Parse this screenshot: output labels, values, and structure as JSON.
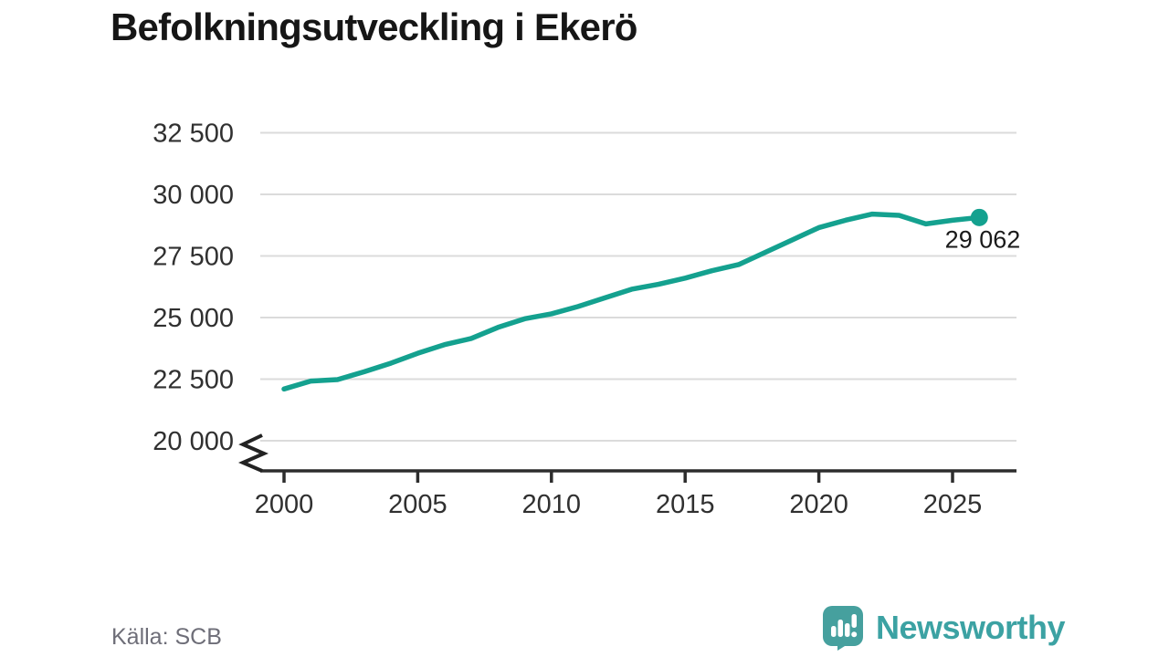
{
  "title": "Befolkningsutveckling i Ekerö",
  "source": "Källa: SCB",
  "branding": {
    "name": "Newsworthy",
    "icon": "newsworthy-speech-bubble-chart-icon",
    "icon_color": "#46a09e",
    "text_color": "#3ca2a3"
  },
  "chart_data": {
    "type": "line",
    "title": "Befolkningsutveckling i Ekerö",
    "xlabel": "",
    "ylabel": "",
    "x": [
      2000,
      2001,
      2002,
      2003,
      2004,
      2005,
      2006,
      2007,
      2008,
      2009,
      2010,
      2011,
      2012,
      2013,
      2014,
      2015,
      2016,
      2017,
      2018,
      2019,
      2020,
      2021,
      2022,
      2023,
      2024,
      2025,
      2026
    ],
    "values": [
      22100,
      22420,
      22480,
      22800,
      23150,
      23550,
      23900,
      24150,
      24600,
      24950,
      25150,
      25450,
      25800,
      26150,
      26350,
      26600,
      26900,
      27150,
      27650,
      28150,
      28650,
      28950,
      29200,
      29150,
      28800,
      28950,
      29062
    ],
    "x_ticks": [
      2000,
      2005,
      2010,
      2015,
      2020,
      2025
    ],
    "x_tick_labels": [
      "2000",
      "2005",
      "2010",
      "2015",
      "2020",
      "2025"
    ],
    "y_ticks": [
      20000,
      22500,
      25000,
      27500,
      30000,
      32500
    ],
    "y_tick_labels": [
      "20 000",
      "22 500",
      "25 000",
      "27 500",
      "30 000",
      "32 500"
    ],
    "ylim": [
      18900,
      33300
    ],
    "xlim": [
      2000,
      2027.4
    ],
    "grid": "horizontal",
    "legend": "none",
    "axis_break": true,
    "end_label": "29 062",
    "end_value": 29062,
    "line_color": "#14a18f",
    "grid_color": "#dbdbdb",
    "axis_color": "#2d2d2d",
    "tick_text_color": "#303030"
  }
}
